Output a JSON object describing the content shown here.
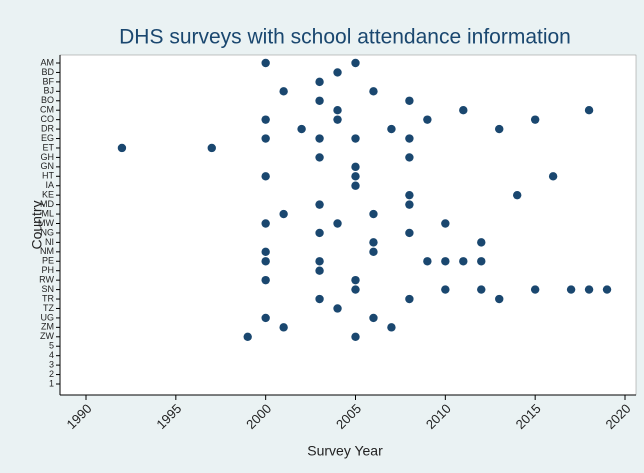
{
  "chart_data": {
    "type": "scatter",
    "title": "DHS surveys with school attendance information",
    "x_label": "Survey Year",
    "y_label": "Country",
    "categories": [
      "AM",
      "BD",
      "BF",
      "BJ",
      "BO",
      "CM",
      "CO",
      "DR",
      "EG",
      "ET",
      "GH",
      "GN",
      "HT",
      "IA",
      "KE",
      "MD",
      "ML",
      "MW",
      "NG",
      "NI",
      "NM",
      "PE",
      "PH",
      "RW",
      "SN",
      "TR",
      "TZ",
      "UG",
      "ZM",
      "ZW",
      "5",
      "4",
      "3",
      "2",
      "1"
    ],
    "xlim": [
      1990,
      2020
    ],
    "xticks": [
      1990,
      1995,
      2000,
      2005,
      2010,
      2015,
      2020
    ],
    "series": [
      {
        "color": "#1a476f",
        "x": [
          2000,
          2005,
          2004,
          2003,
          2001,
          2006,
          2003,
          2008,
          2004,
          2011,
          2018,
          2000,
          2004,
          2009,
          2015,
          2002,
          2007,
          2013,
          2000,
          2003,
          2005,
          2008,
          1992,
          1997,
          2003,
          2008,
          2005,
          2000,
          2005,
          2016,
          2005,
          2008,
          2014,
          2003,
          2008,
          2001,
          2006,
          2000,
          2004,
          2010,
          2003,
          2008,
          2006,
          2012,
          2000,
          2006,
          2000,
          2003,
          2009,
          2010,
          2011,
          2012,
          2003,
          2000,
          2005,
          2005,
          2010,
          2012,
          2015,
          2017,
          2018,
          2019,
          2003,
          2008,
          2013,
          2004,
          2000,
          2006,
          2001,
          2007,
          1999,
          2005
        ],
        "y": [
          "AM",
          "AM",
          "BD",
          "BF",
          "BJ",
          "BJ",
          "BO",
          "BO",
          "CM",
          "CM",
          "CM",
          "CO",
          "CO",
          "CO",
          "CO",
          "DR",
          "DR",
          "DR",
          "EG",
          "EG",
          "EG",
          "EG",
          "ET",
          "ET",
          "GH",
          "GH",
          "GN",
          "HT",
          "HT",
          "HT",
          "IA",
          "KE",
          "KE",
          "MD",
          "MD",
          "ML",
          "ML",
          "MW",
          "MW",
          "MW",
          "NG",
          "NG",
          "NI",
          "NI",
          "NM",
          "NM",
          "PE",
          "PE",
          "PE",
          "PE",
          "PE",
          "PE",
          "PH",
          "RW",
          "RW",
          "SN",
          "SN",
          "SN",
          "SN",
          "SN",
          "SN",
          "SN",
          "TR",
          "TR",
          "TR",
          "TZ",
          "UG",
          "UG",
          "ZM",
          "ZM",
          "ZW",
          "ZW"
        ]
      }
    ]
  }
}
